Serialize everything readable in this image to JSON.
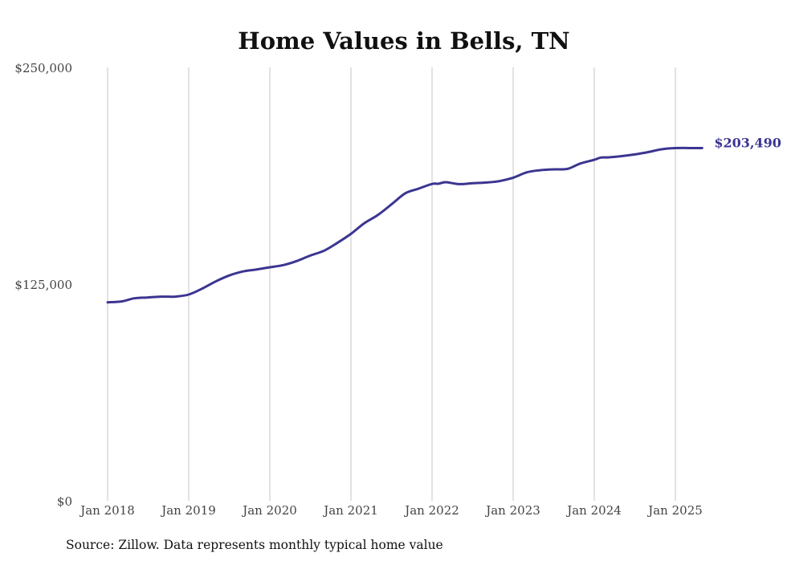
{
  "chart_data": {
    "type": "line",
    "title": "Home Values in Bells, TN",
    "xlabel": "",
    "ylabel": "",
    "ylim": [
      0,
      250000
    ],
    "y_ticks": [
      {
        "value": 0,
        "label": "$0"
      },
      {
        "value": 125000,
        "label": "$125,000"
      },
      {
        "value": 250000,
        "label": "$250,000"
      }
    ],
    "x_ticks": [
      {
        "value": 2018.0,
        "label": "Jan 2018"
      },
      {
        "value": 2019.0,
        "label": "Jan 2019"
      },
      {
        "value": 2020.0,
        "label": "Jan 2020"
      },
      {
        "value": 2021.0,
        "label": "Jan 2021"
      },
      {
        "value": 2022.0,
        "label": "Jan 2022"
      },
      {
        "value": 2023.0,
        "label": "Jan 2023"
      },
      {
        "value": 2024.0,
        "label": "Jan 2024"
      },
      {
        "value": 2025.0,
        "label": "Jan 2025"
      }
    ],
    "grid": "vertical",
    "line_color": "#3b3591",
    "series": [
      {
        "x": [
          2018.0,
          2018.17,
          2018.33,
          2018.5,
          2018.67,
          2018.83,
          2019.0,
          2019.17,
          2019.33,
          2019.5,
          2019.67,
          2019.83,
          2020.0,
          2020.17,
          2020.33,
          2020.5,
          2020.67,
          2020.83,
          2021.0,
          2021.17,
          2021.33,
          2021.5,
          2021.67,
          2021.83,
          2022.0,
          2022.08,
          2022.17,
          2022.33,
          2022.5,
          2022.67,
          2022.83,
          2023.0,
          2023.17,
          2023.33,
          2023.5,
          2023.67,
          2023.83,
          2024.0,
          2024.08,
          2024.17,
          2024.33,
          2024.5,
          2024.67,
          2024.83,
          2025.0,
          2025.17,
          2025.33
        ],
        "values": [
          114500,
          115000,
          116800,
          117300,
          117800,
          117800,
          119000,
          122500,
          126500,
          130000,
          132300,
          133400,
          134700,
          136000,
          138300,
          141500,
          144300,
          148700,
          154000,
          160300,
          164800,
          171000,
          177400,
          180000,
          182800,
          182900,
          183800,
          182700,
          183200,
          183600,
          184400,
          186400,
          189500,
          190700,
          191200,
          191500,
          194600,
          196700,
          198000,
          198100,
          198800,
          199800,
          201200,
          202800,
          203490,
          203490,
          203490
        ],
        "end_label": "$203,490"
      }
    ]
  },
  "source_note": "Source: Zillow. Data represents monthly typical home value"
}
